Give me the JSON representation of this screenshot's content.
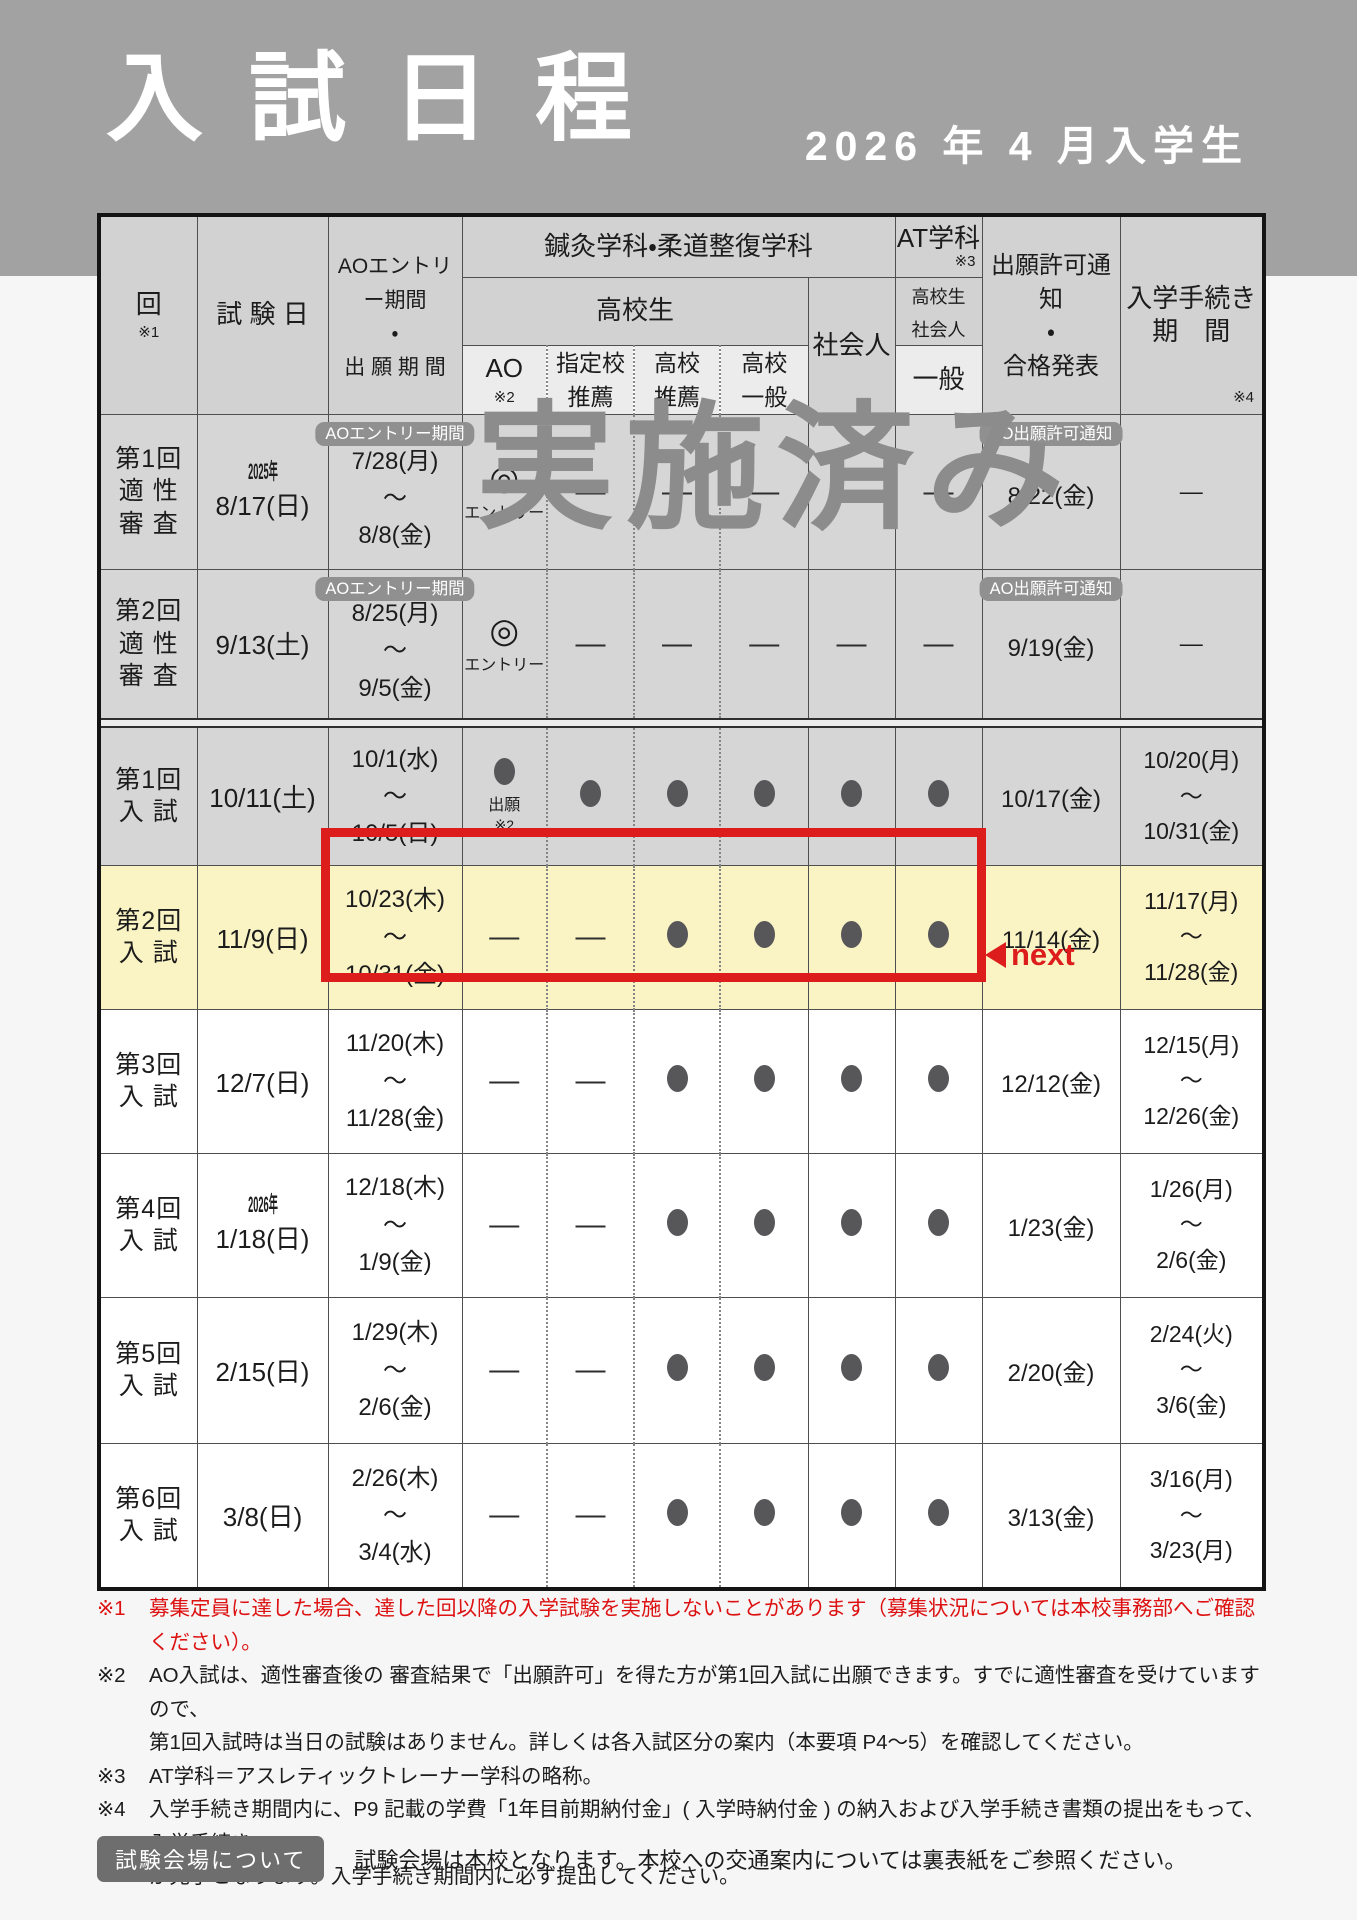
{
  "page": {
    "title": "入試日程",
    "subtitle": "2026 年 4 月入学生"
  },
  "table": {
    "header": {
      "round": "回",
      "round_note": "※1",
      "exam_date": "試 験 日",
      "period": "AOエントリー期間\n・\n出 願 期 間",
      "dept_group": "鍼灸学科・柔道整復学科",
      "hs_group": "高校生",
      "ao": "AO",
      "ao_note": "※2",
      "shiteiko": "指定校\n推薦",
      "kosui": "高校\n推薦",
      "koippan": "高校\n一般",
      "shakaijin": "社会人",
      "at_group": "AT学科",
      "at_note": "※3",
      "at_sub": "高校生\n社会人",
      "at_ippan": "一般",
      "notice": "出願許可通知\n・\n合格発表",
      "procedure": "入学手続き\n期　間",
      "procedure_note": "※4"
    },
    "symbols": {
      "dash": "—",
      "dot": "●",
      "entry_glyph": "◎",
      "entry_label": "エントリー",
      "apply_label": "出願",
      "apply_note": "※2"
    },
    "watermark": "実施済み",
    "next_label": "next",
    "rows": [
      {
        "style": "gray",
        "round": "第1回\n適 性\n審 査",
        "year": "2025年",
        "date": "8/17(日)",
        "period_badge": "AOエントリー期間",
        "period": "7/28(月)\n〜\n8/8(金)",
        "marks": [
          "entry",
          "dash",
          "dash",
          "dash",
          "dash",
          "dash"
        ],
        "notice_badge": "AO出願許可通知",
        "notice": "8/22(金)",
        "procedure": "—"
      },
      {
        "style": "gray",
        "round": "第2回\n適 性\n審 査",
        "date": "9/13(土)",
        "period_badge": "AOエントリー期間",
        "period": "8/25(月)\n〜\n9/5(金)",
        "marks": [
          "entry",
          "dash",
          "dash",
          "dash",
          "dash",
          "dash"
        ],
        "notice_badge": "AO出願許可通知",
        "notice": "9/19(金)",
        "procedure": "—"
      },
      {
        "style": "gray",
        "round": "第1回\n入 試",
        "date": "10/11(土)",
        "period": "10/1(水)\n〜\n10/5(日)",
        "marks": [
          "apply",
          "dot",
          "dot",
          "dot",
          "dot",
          "dot"
        ],
        "notice": "10/17(金)",
        "procedure": "10/20(月)\n〜\n10/31(金)"
      },
      {
        "style": "yellow",
        "highlight": true,
        "round": "第2回\n入 試",
        "date": "11/9(日)",
        "period": "10/23(木)\n〜\n10/31(金)",
        "marks": [
          "dash",
          "dash",
          "dot",
          "dot",
          "dot",
          "dot"
        ],
        "notice": "11/14(金)",
        "procedure": "11/17(月)\n〜\n11/28(金)"
      },
      {
        "style": "white",
        "round": "第3回\n入 試",
        "date": "12/7(日)",
        "period": "11/20(木)\n〜\n11/28(金)",
        "marks": [
          "dash",
          "dash",
          "dot",
          "dot",
          "dot",
          "dot"
        ],
        "notice": "12/12(金)",
        "procedure": "12/15(月)\n〜\n12/26(金)"
      },
      {
        "style": "white",
        "round": "第4回\n入 試",
        "year": "2026年",
        "date": "1/18(日)",
        "period": "12/18(木)\n〜\n1/9(金)",
        "marks": [
          "dash",
          "dash",
          "dot",
          "dot",
          "dot",
          "dot"
        ],
        "notice": "1/23(金)",
        "procedure": "1/26(月)\n〜\n2/6(金)"
      },
      {
        "style": "white",
        "round": "第5回\n入 試",
        "date": "2/15(日)",
        "period": "1/29(木)\n〜\n2/6(金)",
        "marks": [
          "dash",
          "dash",
          "dot",
          "dot",
          "dot",
          "dot"
        ],
        "notice": "2/20(金)",
        "procedure": "2/24(火)\n〜\n3/6(金)"
      },
      {
        "style": "white",
        "round": "第6回\n入 試",
        "date": "3/8(日)",
        "period": "2/26(木)\n〜\n3/4(水)",
        "marks": [
          "dash",
          "dash",
          "dot",
          "dot",
          "dot",
          "dot"
        ],
        "notice": "3/13(金)",
        "procedure": "3/16(月)\n〜\n3/23(月)"
      }
    ]
  },
  "footnotes": [
    {
      "marker": "※1",
      "text": "募集定員に達した場合、達した回以降の入学試験を実施しないことがあります（募集状況については本校事務部へご確認ください）。",
      "color": "red"
    },
    {
      "marker": "※2",
      "text": "AO入試は、適性審査後の 審査結果で「出願許可」を得た方が第1回入試に出願できます。すでに適性審査を受けていますので、\n第1回入試時は当日の試験はありません。詳しくは各入試区分の案内（本要項 P4〜5）を確認してください。"
    },
    {
      "marker": "※3",
      "text": "AT学科＝アスレティックトレーナー学科の略称。"
    },
    {
      "marker": "※4",
      "text": "入学手続き期間内に、P9 記載の学費「1年目前期納付金」( 入学時納付金 ) の納入および入学手続き書類の提出をもって、入学手続き\nが完了となります。入学手続き期間内に必ず提出してください。"
    }
  ],
  "venue": {
    "badge": "試験会場について",
    "text": "試験会場は本校となります。本校への交通案内については裏表紙をご参照ください。"
  },
  "colors": {
    "accent_red": "#dd1c1c",
    "footnote_red": "#dd1111",
    "row_yellow": "#faf3c4",
    "row_gray": "#d6d6d6",
    "header_gray": "#d2d2d2",
    "header_light": "#ececec",
    "band_gray": "#a2a2a2",
    "badge_gray": "#909090",
    "dot_gray": "#57575a",
    "watermark_gray": "#8c8c8c"
  }
}
